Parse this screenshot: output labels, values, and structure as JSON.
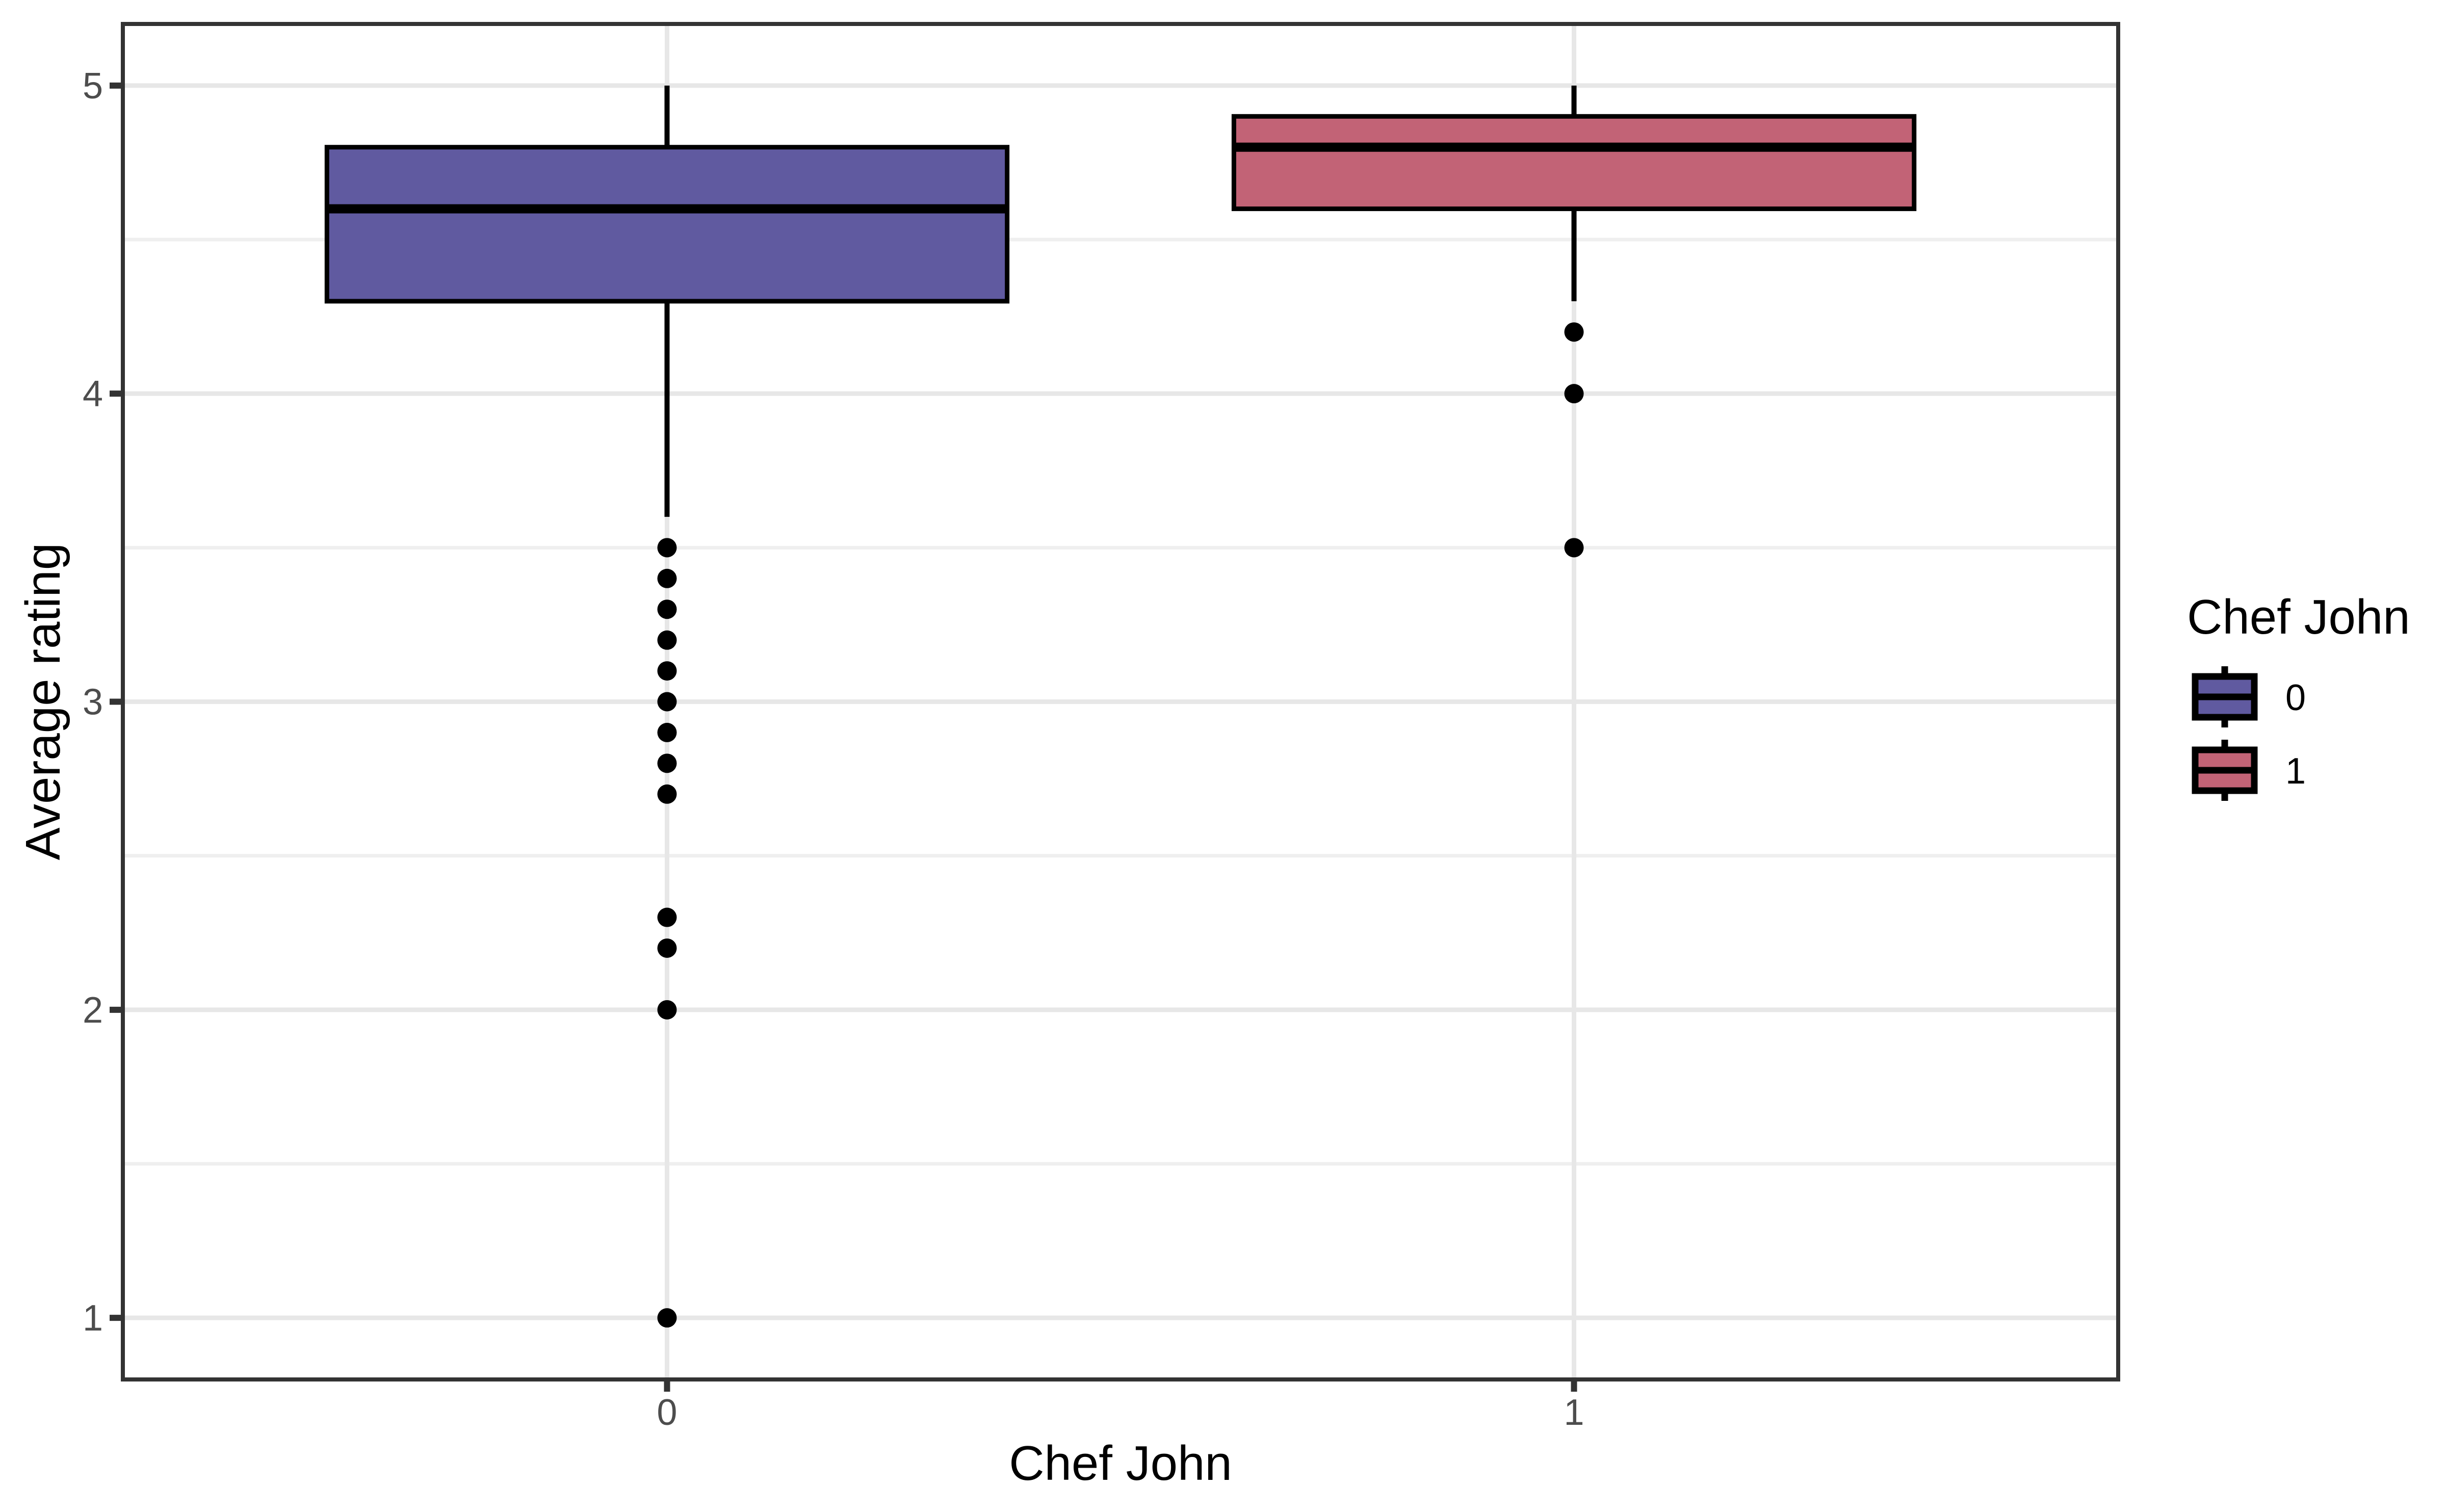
{
  "figure": {
    "background": "#FFFFFF"
  },
  "chart_data": {
    "type": "boxplot",
    "title": "",
    "xlabel": "Chef John",
    "ylabel": "Average rating",
    "categories": [
      "0",
      "1"
    ],
    "ylim": [
      0.8,
      5.2
    ],
    "yticks": [
      1,
      2,
      3,
      4,
      5
    ],
    "y_minor_gridlines": [
      1.5,
      2.5,
      3.5,
      4.5
    ],
    "grid": "major+minor",
    "legend_position": "right",
    "legend": {
      "title": "Chef John",
      "entries": [
        {
          "label": "0",
          "fill": "#605AA0"
        },
        {
          "label": "1",
          "fill": "#C26376"
        }
      ]
    },
    "series": [
      {
        "group": "0",
        "fill": "#605AA0",
        "whisker_low": 3.6,
        "q1": 4.3,
        "median": 4.6,
        "q3": 4.8,
        "whisker_high": 5.0,
        "outliers": [
          3.5,
          3.4,
          3.3,
          3.2,
          3.1,
          3.0,
          2.9,
          2.8,
          2.7,
          2.3,
          2.2,
          2.0,
          1.0
        ]
      },
      {
        "group": "1",
        "fill": "#C26376",
        "whisker_low": 4.3,
        "q1": 4.6,
        "median": 4.8,
        "q3": 4.9,
        "whisker_high": 5.0,
        "outliers": [
          4.2,
          4.0,
          3.5
        ]
      }
    ],
    "style": {
      "box_border": "#000000",
      "outlier_color": "#000000",
      "axis_text": "#4D4D4D",
      "title_text": "#000000",
      "panel_border": "#333333",
      "tick_color": "#333333",
      "grid_major": "#E7E7E7",
      "grid_minor": "#EFEFEF",
      "panel_background": "#FFFFFF"
    }
  }
}
